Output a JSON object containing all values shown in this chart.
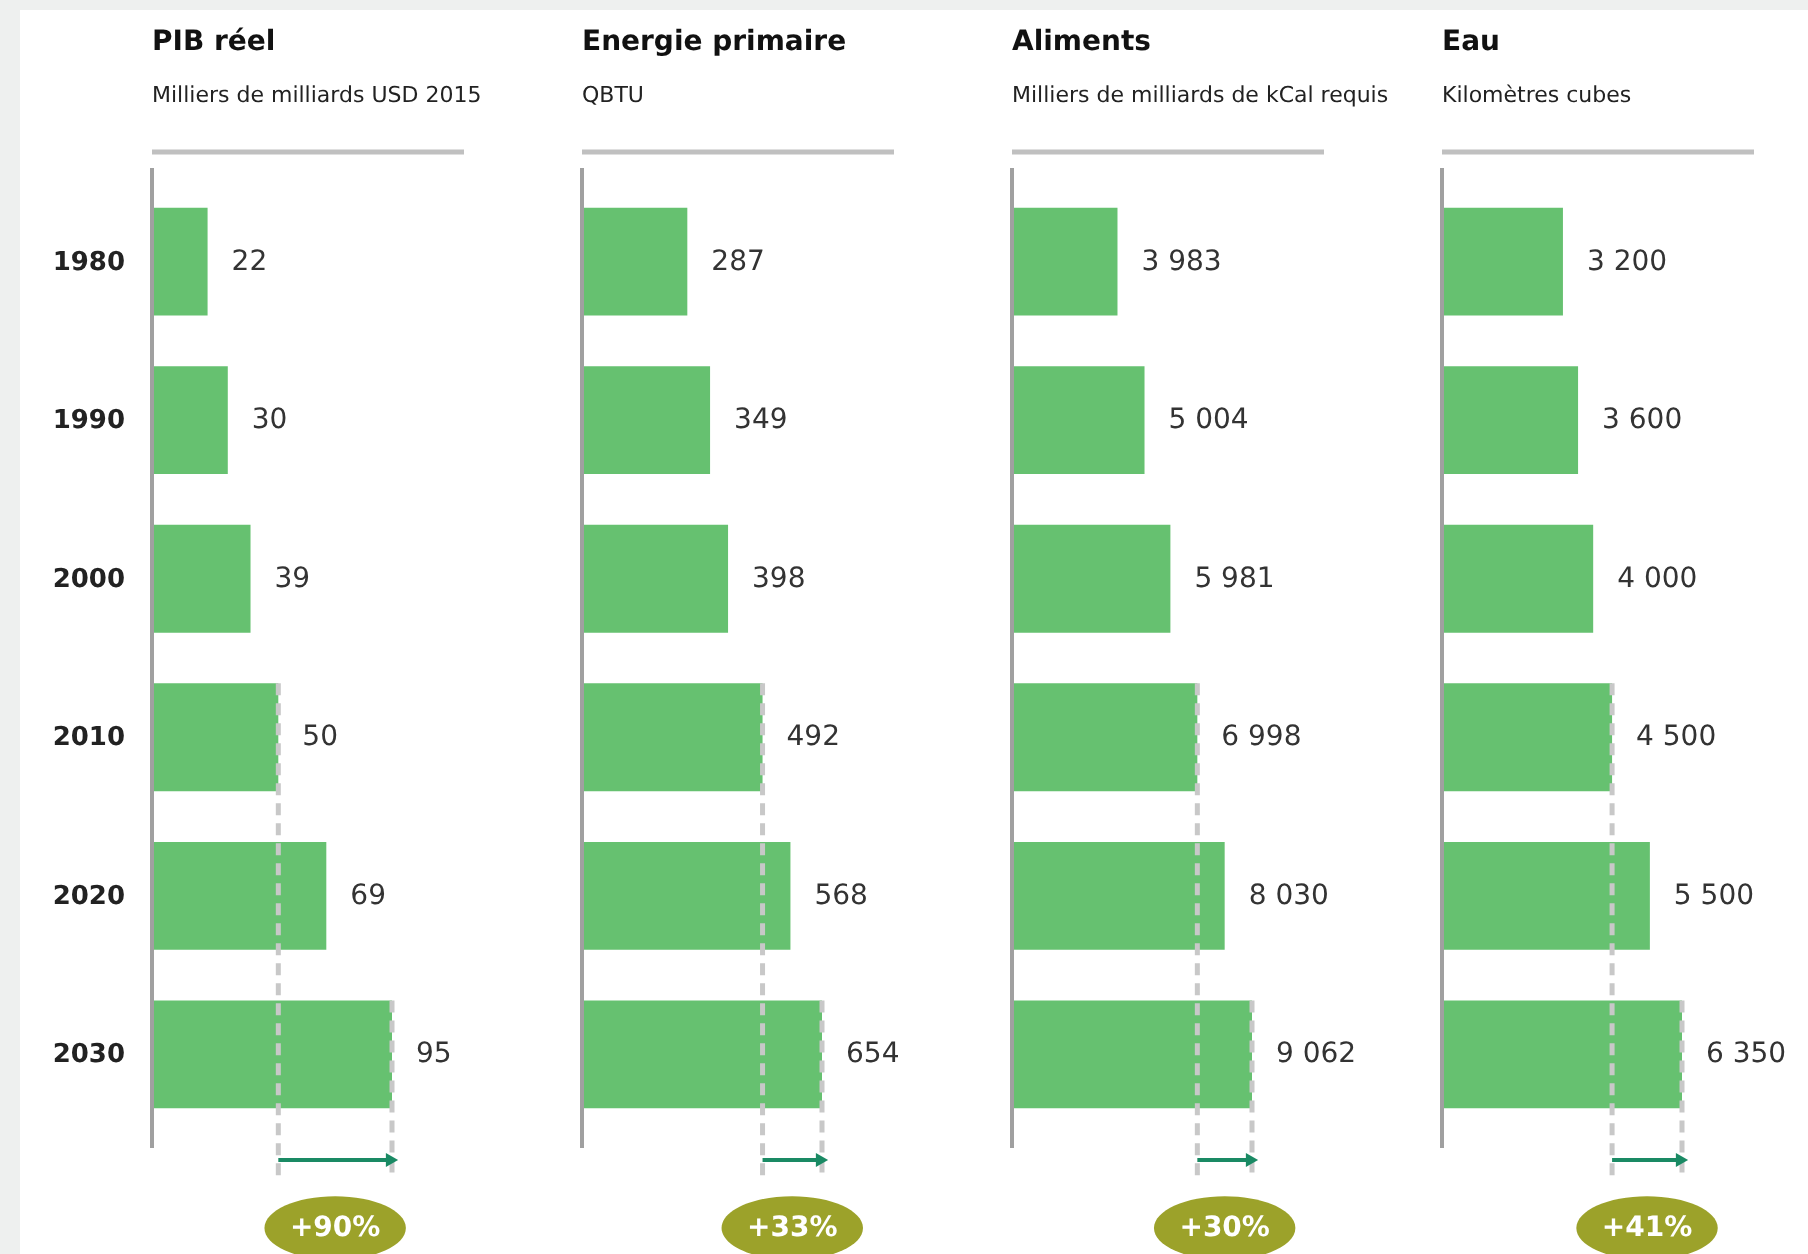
{
  "chart_data": [
    {
      "type": "bar",
      "orientation": "horizontal",
      "title": "PIB réel",
      "subtitle": "Milliers de milliards USD 2015",
      "categories": [
        "1980",
        "1990",
        "2000",
        "2010",
        "2020",
        "2030"
      ],
      "values": [
        22,
        30,
        39,
        50,
        69,
        95
      ],
      "value_labels": [
        "22",
        "30",
        "39",
        "50",
        "69",
        "95"
      ],
      "color": "#66c170",
      "tick_labels": "y",
      "ref_lines": [
        {
          "axis": "x",
          "value": 50,
          "label": null,
          "color": "#c8c8c8",
          "line_style": "dashed"
        },
        {
          "axis": "x",
          "value": 95,
          "label": null,
          "color": "#c8c8c8",
          "line_style": "dashed"
        }
      ],
      "annotations": [
        "+90%"
      ]
    },
    {
      "type": "bar",
      "orientation": "horizontal",
      "title": "Energie primaire",
      "subtitle": "QBTU",
      "categories": [
        null,
        null,
        null,
        null,
        null,
        null
      ],
      "values": [
        287,
        349,
        398,
        492,
        568,
        654
      ],
      "value_labels": [
        "287",
        "349",
        "398",
        "492",
        "568",
        "654"
      ],
      "color": "#66c170",
      "tick_labels": false,
      "ref_lines": [
        {
          "axis": "x",
          "value": 492,
          "label": null,
          "color": "#c8c8c8",
          "line_style": "dashed"
        },
        {
          "axis": "x",
          "value": 654,
          "label": null,
          "color": "#c8c8c8",
          "line_style": "dashed"
        }
      ],
      "annotations": [
        "+33%"
      ]
    },
    {
      "type": "bar",
      "orientation": "horizontal",
      "title": "Aliments",
      "subtitle": "Milliers de milliards de kCal requis",
      "categories": [
        null,
        null,
        null,
        null,
        null,
        null
      ],
      "values": [
        3983,
        5004,
        5981,
        6998,
        8030,
        9062
      ],
      "value_labels": [
        "3 983",
        "5 004",
        "5 981",
        "6 998",
        "8 030",
        "9 062"
      ],
      "color": "#66c170",
      "tick_labels": false,
      "ref_lines": [
        {
          "axis": "x",
          "value": 6998,
          "label": null,
          "color": "#c8c8c8",
          "line_style": "dashed"
        },
        {
          "axis": "x",
          "value": 9062,
          "label": null,
          "color": "#c8c8c8",
          "line_style": "dashed"
        }
      ],
      "annotations": [
        "+30%"
      ]
    },
    {
      "type": "bar",
      "orientation": "horizontal",
      "title": "Eau",
      "subtitle": "Kilomètres cubes",
      "categories": [
        null,
        null,
        null,
        null,
        null,
        null
      ],
      "values": [
        3200,
        3600,
        4000,
        4500,
        5500,
        6350
      ],
      "value_labels": [
        "3 200",
        "3 600",
        "4 000",
        "4 500",
        "5 500",
        "6 350"
      ],
      "color": "#66c170",
      "tick_labels": false,
      "ref_lines": [
        {
          "axis": "x",
          "value": 4500,
          "label": null,
          "color": "#c8c8c8",
          "line_style": "dashed"
        },
        {
          "axis": "x",
          "value": 6350,
          "label": null,
          "color": "#c8c8c8",
          "line_style": "dashed"
        }
      ],
      "annotations": [
        "+41%"
      ]
    }
  ]
}
